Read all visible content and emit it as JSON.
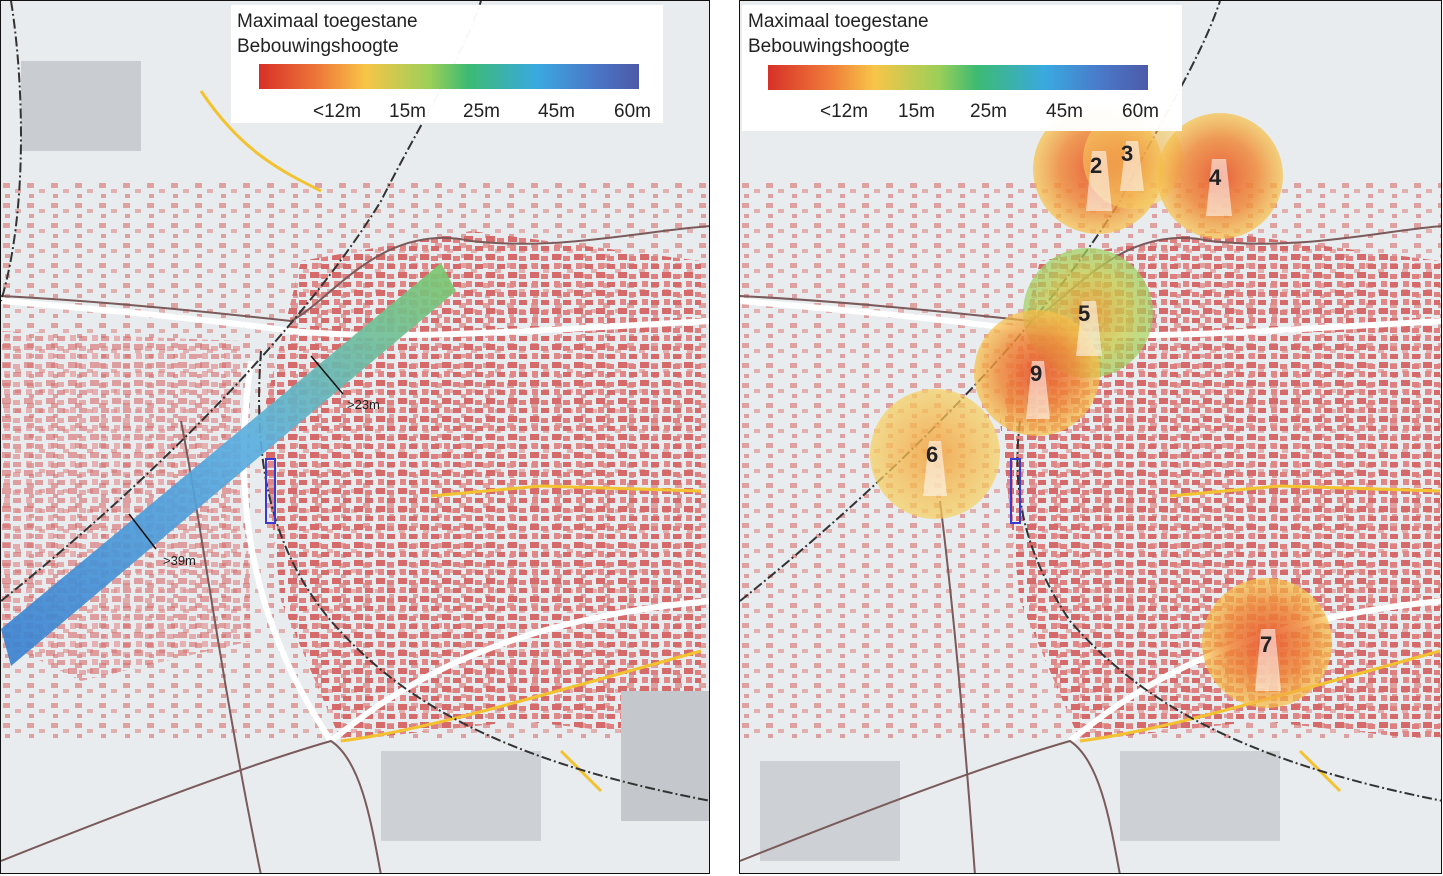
{
  "legend": {
    "title_line1": "Maximaal toegestane",
    "title_line2": "Bebouwingshoogte",
    "ticks": [
      "<12m",
      "15m",
      "25m",
      "45m",
      "60m"
    ],
    "gradient_colors": [
      "#d73027",
      "#f7c548",
      "#3cba72",
      "#3aa9e0",
      "#4c5aa8"
    ]
  },
  "left_map": {
    "corridor_labels": [
      ">23m",
      ">39m"
    ],
    "corridor_colors": [
      "#5a9ad8",
      "#8ed081"
    ]
  },
  "right_map": {
    "zones": [
      {
        "number": "2",
        "color": "#ef8a3a"
      },
      {
        "number": "3",
        "color": "#f0a040"
      },
      {
        "number": "4",
        "color": "#ef7a3a"
      },
      {
        "number": "5",
        "color": "#b9d060"
      },
      {
        "number": "9",
        "color": "#ea6a36"
      },
      {
        "number": "6",
        "color": "#f2b84a"
      },
      {
        "number": "7",
        "color": "#ef8a3a"
      }
    ]
  },
  "colors": {
    "building": "#d45a5a",
    "road": "#ffffff",
    "yellow_road": "#f2c230",
    "rail": "#333333",
    "background": "#eceff1"
  }
}
